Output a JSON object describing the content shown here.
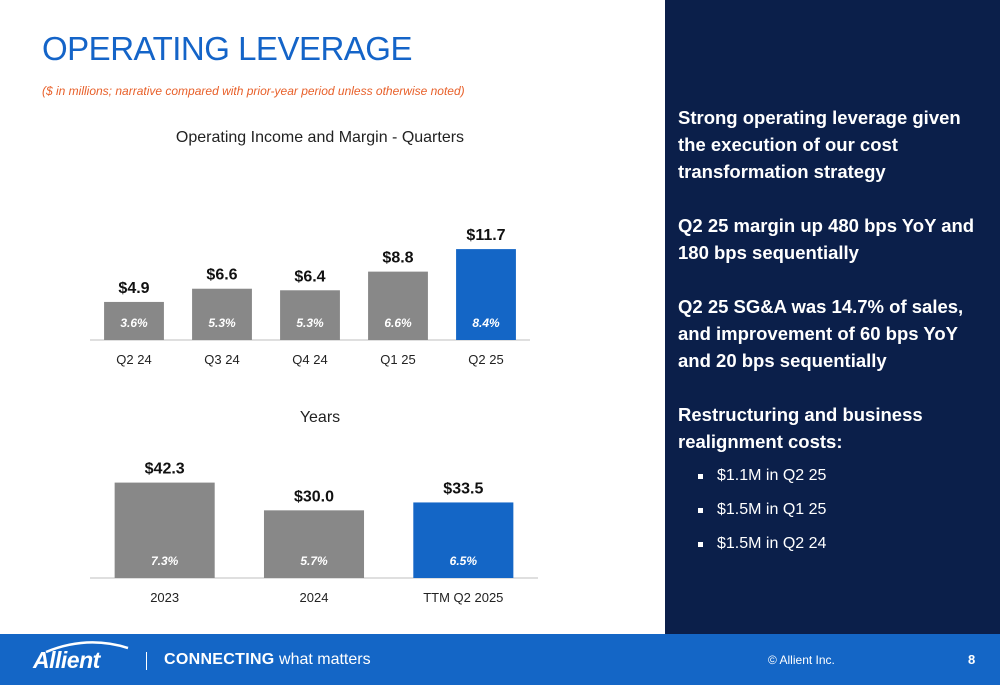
{
  "header": {
    "title": "OPERATING LEVERAGE",
    "subtitle": "($ in millions; narrative compared with prior-year period unless otherwise noted)"
  },
  "chart_data": [
    {
      "type": "bar",
      "title": "Operating Income and Margin - Quarters",
      "categories": [
        "Q2 24",
        "Q3 24",
        "Q4 24",
        "Q1 25",
        "Q2 25"
      ],
      "values": [
        4.9,
        6.6,
        6.4,
        8.8,
        11.7
      ],
      "value_labels": [
        "$4.9",
        "$6.6",
        "$6.4",
        "$8.8",
        "$11.7"
      ],
      "margin_labels": [
        "3.6%",
        "5.3%",
        "5.3%",
        "6.6%",
        "8.4%"
      ],
      "highlight_index": 4,
      "ylim": [
        0,
        13
      ],
      "grid": false,
      "colors": {
        "bar": "#888888",
        "highlight": "#1466c6"
      }
    },
    {
      "type": "bar",
      "title": "Years",
      "categories": [
        "2023",
        "2024",
        "TTM Q2 2025"
      ],
      "values": [
        42.3,
        30.0,
        33.5
      ],
      "value_labels": [
        "$42.3",
        "$30.0",
        "$33.5"
      ],
      "margin_labels": [
        "7.3%",
        "5.7%",
        "6.5%"
      ],
      "highlight_index": 2,
      "ylim": [
        0,
        47
      ],
      "grid": false,
      "colors": {
        "bar": "#888888",
        "highlight": "#1466c6"
      }
    }
  ],
  "panel": {
    "para1": "Strong operating leverage given the execution of our cost transformation strategy",
    "para2": "Q2 25 margin up 480 bps YoY and 180 bps sequentially",
    "para3": "Q2 25 SG&A was 14.7% of sales, and improvement of 60 bps YoY and 20 bps sequentially",
    "para4": "Restructuring and business realignment costs:",
    "bullets": [
      "$1.1M in Q2 25",
      "$1.5M in Q1 25",
      "$1.5M in Q2 24"
    ]
  },
  "footer": {
    "logo_text": "Allient",
    "tagline_strong": "CONNECTING",
    "tagline_rest": " what matters",
    "copyright": "© Allient Inc.",
    "page_number": "8"
  }
}
